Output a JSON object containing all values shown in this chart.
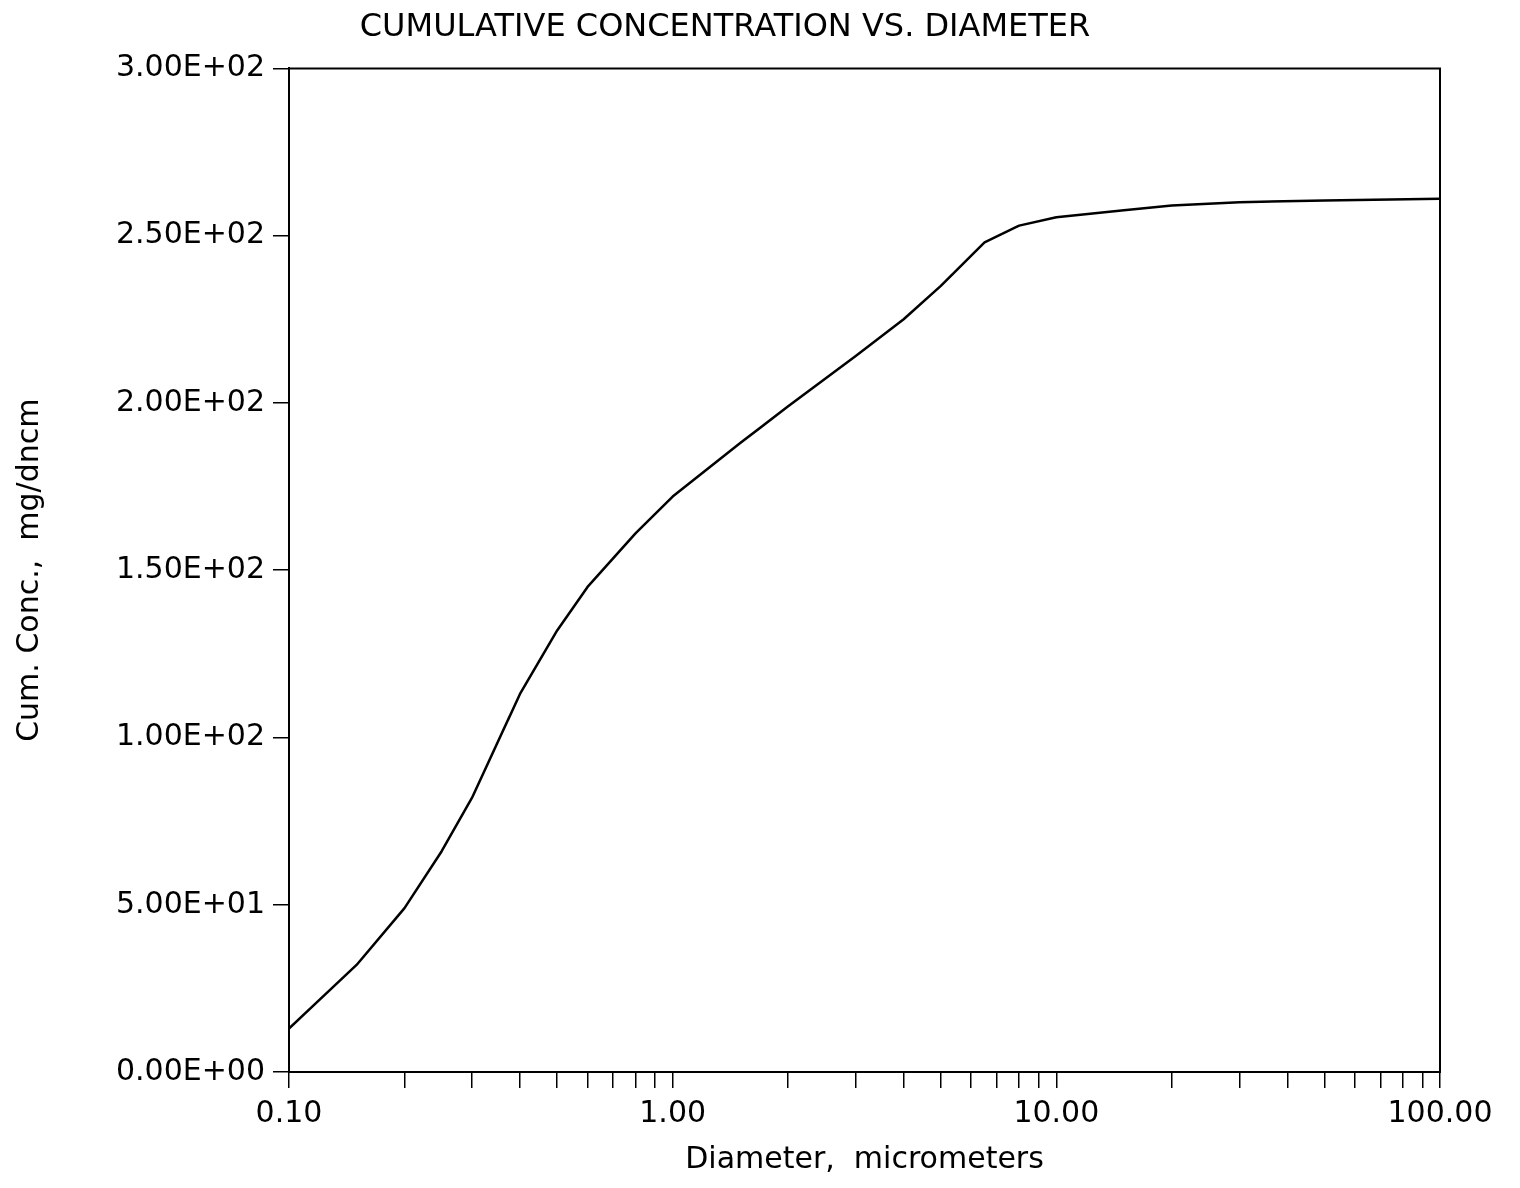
{
  "chart_data": {
    "type": "line",
    "title": "CUMULATIVE CONCENTRATION VS. DIAMETER",
    "xlabel": "Diameter,  micrometers",
    "ylabel": "Cum. Conc.,  mg/dncm",
    "log": "x",
    "grid": false,
    "legend": false,
    "marker": "none",
    "line_style": "solid",
    "xlim": [
      0.1,
      100
    ],
    "xticks": [
      {
        "value": 0.1,
        "label": "0.10"
      },
      {
        "value": 0.2,
        "label": null
      },
      {
        "value": 0.3,
        "label": null
      },
      {
        "value": 0.4,
        "label": null
      },
      {
        "value": 0.5,
        "label": null
      },
      {
        "value": 0.6,
        "label": null
      },
      {
        "value": 0.7,
        "label": null
      },
      {
        "value": 0.8,
        "label": null
      },
      {
        "value": 0.9,
        "label": null
      },
      {
        "value": 1,
        "label": "1.00"
      },
      {
        "value": 2,
        "label": null
      },
      {
        "value": 3,
        "label": null
      },
      {
        "value": 4,
        "label": null
      },
      {
        "value": 5,
        "label": null
      },
      {
        "value": 6,
        "label": null
      },
      {
        "value": 7,
        "label": null
      },
      {
        "value": 8,
        "label": null
      },
      {
        "value": 9,
        "label": null
      },
      {
        "value": 10,
        "label": "10.00"
      },
      {
        "value": 20,
        "label": null
      },
      {
        "value": 30,
        "label": null
      },
      {
        "value": 40,
        "label": null
      },
      {
        "value": 50,
        "label": null
      },
      {
        "value": 60,
        "label": null
      },
      {
        "value": 70,
        "label": null
      },
      {
        "value": 80,
        "label": null
      },
      {
        "value": 90,
        "label": null
      },
      {
        "value": 100,
        "label": "100.00"
      }
    ],
    "ylim": [
      0,
      300
    ],
    "yticks": [
      {
        "value": 0,
        "label": "0.00E+00"
      },
      {
        "value": 50,
        "label": "5.00E+01"
      },
      {
        "value": 100,
        "label": "1.00E+02"
      },
      {
        "value": 150,
        "label": "1.50E+02"
      },
      {
        "value": 200,
        "label": "2.00E+02"
      },
      {
        "value": 250,
        "label": "2.50E+02"
      },
      {
        "value": 300,
        "label": "3.00E+02"
      }
    ],
    "series": [
      {
        "color": "#000000",
        "x": [
          0.1,
          0.15,
          0.2,
          0.25,
          0.3,
          0.4,
          0.5,
          0.6,
          0.8,
          1,
          1.5,
          2,
          3,
          4,
          5,
          6.5,
          8,
          10,
          15,
          20,
          30,
          50,
          100
        ],
        "values": [
          13,
          32,
          49,
          66,
          82,
          113,
          132,
          145,
          161,
          172,
          188,
          199,
          214,
          225,
          235,
          248,
          253,
          255.5,
          257.6,
          259,
          260,
          260.5,
          261
        ]
      }
    ]
  }
}
